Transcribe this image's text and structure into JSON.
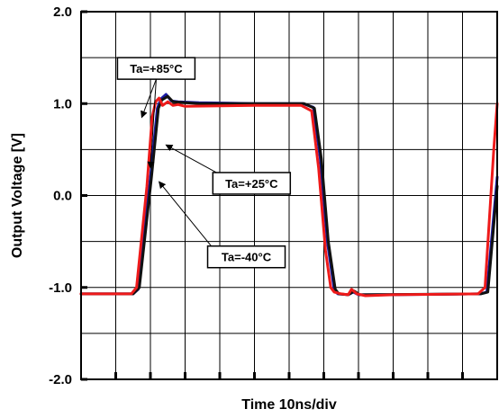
{
  "chart_data": {
    "type": "line",
    "xlabel": "Time 10ns/div",
    "ylabel": "Output Voltage [V]",
    "ylim": [
      -2.0,
      2.0
    ],
    "xlim": [
      0,
      120
    ],
    "x_divisions": 12,
    "y_divisions": 8,
    "grid": true,
    "y_ticks": [
      "2.0",
      "1.0",
      "0.0",
      "-1.0",
      "-2.0"
    ],
    "y_tick_values": [
      2.0,
      1.0,
      0.0,
      -1.0,
      -2.0
    ],
    "series": [
      {
        "color": "#1a1aa6",
        "points": [
          [
            0,
            -1.07
          ],
          [
            15,
            -1.07
          ],
          [
            16.5,
            -1.02
          ],
          [
            20,
            0.2
          ],
          [
            22,
            0.95
          ],
          [
            23,
            1.05
          ],
          [
            24.5,
            1.1
          ],
          [
            26,
            1.03
          ],
          [
            28,
            1.02
          ],
          [
            34,
            1.01
          ],
          [
            50,
            1.0
          ],
          [
            64,
            1.0
          ],
          [
            67,
            0.96
          ],
          [
            69,
            0.4
          ],
          [
            71,
            -0.5
          ],
          [
            73,
            -1.02
          ],
          [
            74,
            -1.07
          ],
          [
            77,
            -1.08
          ],
          [
            78.5,
            -1.05
          ],
          [
            80,
            -1.08
          ],
          [
            90,
            -1.08
          ],
          [
            115,
            -1.07
          ],
          [
            117,
            -1.05
          ],
          [
            120,
            0.2
          ]
        ]
      },
      {
        "color": "#111111",
        "points": [
          [
            0,
            -1.07
          ],
          [
            15,
            -1.07
          ],
          [
            16.8,
            -1.0
          ],
          [
            20.3,
            0.2
          ],
          [
            22.3,
            0.95
          ],
          [
            23.3,
            1.04
          ],
          [
            25,
            1.08
          ],
          [
            26.5,
            1.02
          ],
          [
            34,
            1.0
          ],
          [
            64.3,
            1.0
          ],
          [
            67.3,
            0.95
          ],
          [
            69.3,
            0.4
          ],
          [
            71.3,
            -0.5
          ],
          [
            73.3,
            -1.02
          ],
          [
            74.3,
            -1.07
          ],
          [
            77,
            -1.08
          ],
          [
            78.8,
            -1.04
          ],
          [
            80.3,
            -1.08
          ],
          [
            115.3,
            -1.07
          ],
          [
            117.3,
            -1.05
          ],
          [
            120,
            0.1
          ]
        ]
      },
      {
        "color": "#ee1a1a",
        "points": [
          [
            0,
            -1.07
          ],
          [
            14.5,
            -1.07
          ],
          [
            16,
            -1.0
          ],
          [
            19,
            0.1
          ],
          [
            20.5,
            0.85
          ],
          [
            21.5,
            1.02
          ],
          [
            22.5,
            1.06
          ],
          [
            23.5,
            0.98
          ],
          [
            25,
            1.02
          ],
          [
            26.5,
            0.98
          ],
          [
            28,
            0.99
          ],
          [
            30,
            0.97
          ],
          [
            50,
            0.98
          ],
          [
            63.5,
            0.98
          ],
          [
            66.5,
            0.92
          ],
          [
            68.5,
            0.3
          ],
          [
            70.5,
            -0.6
          ],
          [
            72,
            -1.0
          ],
          [
            73,
            -1.05
          ],
          [
            75,
            -1.07
          ],
          [
            77,
            -1.08
          ],
          [
            78,
            -1.02
          ],
          [
            79.5,
            -1.07
          ],
          [
            82,
            -1.09
          ],
          [
            90,
            -1.08
          ],
          [
            114.5,
            -1.07
          ],
          [
            116.5,
            -1.0
          ],
          [
            119,
            0.5
          ],
          [
            120,
            1.0
          ]
        ]
      }
    ],
    "annotations": [
      {
        "text": "Ta=+85°C",
        "box_x": 10.5,
        "box_y": 1.5,
        "pointer_x": [
          17.5,
          20.0
        ],
        "pointer_y": [
          0.85,
          0.3
        ]
      },
      {
        "text": "Ta=+25°C",
        "box_x": 38.0,
        "box_y": 0.25,
        "pointer_x": [
          24.5
        ],
        "pointer_y": [
          0.55
        ]
      },
      {
        "text": "Ta=-40°C",
        "box_x": 36.5,
        "box_y": -0.55,
        "pointer_x": [
          22.5
        ],
        "pointer_y": [
          0.15
        ]
      }
    ]
  }
}
